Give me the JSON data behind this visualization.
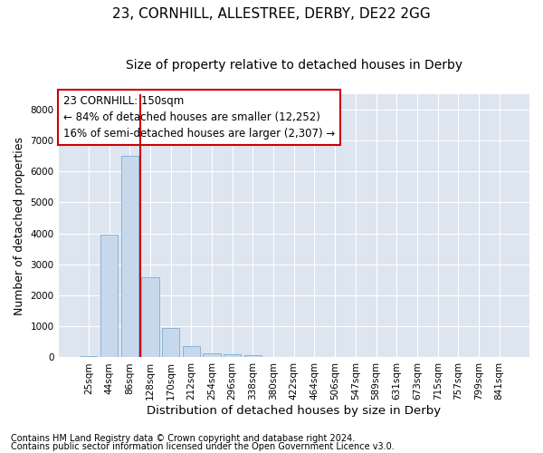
{
  "title": "23, CORNHILL, ALLESTREE, DERBY, DE22 2GG",
  "subtitle": "Size of property relative to detached houses in Derby",
  "xlabel": "Distribution of detached houses by size in Derby",
  "ylabel": "Number of detached properties",
  "footnote1": "Contains HM Land Registry data © Crown copyright and database right 2024.",
  "footnote2": "Contains public sector information licensed under the Open Government Licence v3.0.",
  "annotation_line1": "23 CORNHILL: 150sqm",
  "annotation_line2": "← 84% of detached houses are smaller (12,252)",
  "annotation_line3": "16% of semi-detached houses are larger (2,307) →",
  "bar_labels": [
    "25sqm",
    "44sqm",
    "86sqm",
    "128sqm",
    "170sqm",
    "212sqm",
    "254sqm",
    "296sqm",
    "338sqm",
    "380sqm",
    "422sqm",
    "464sqm",
    "506sqm",
    "547sqm",
    "589sqm",
    "631sqm",
    "673sqm",
    "715sqm",
    "757sqm",
    "799sqm",
    "841sqm"
  ],
  "bar_values": [
    30,
    3950,
    6500,
    2600,
    950,
    350,
    130,
    100,
    70,
    0,
    0,
    0,
    0,
    0,
    0,
    0,
    0,
    0,
    0,
    0,
    0
  ],
  "bar_color": "#c8d8ec",
  "bar_edge_color": "#7aaed0",
  "vline_color": "#cc0000",
  "vline_x_index": 3,
  "ylim": [
    0,
    8500
  ],
  "yticks": [
    0,
    1000,
    2000,
    3000,
    4000,
    5000,
    6000,
    7000,
    8000
  ],
  "plot_bg_color": "#dde5f0",
  "grid_color": "#ffffff",
  "annotation_box_edge": "#cc0000",
  "title_fontsize": 11,
  "subtitle_fontsize": 10,
  "axis_label_fontsize": 9,
  "tick_fontsize": 7.5,
  "annotation_fontsize": 8.5,
  "footnote_fontsize": 7
}
